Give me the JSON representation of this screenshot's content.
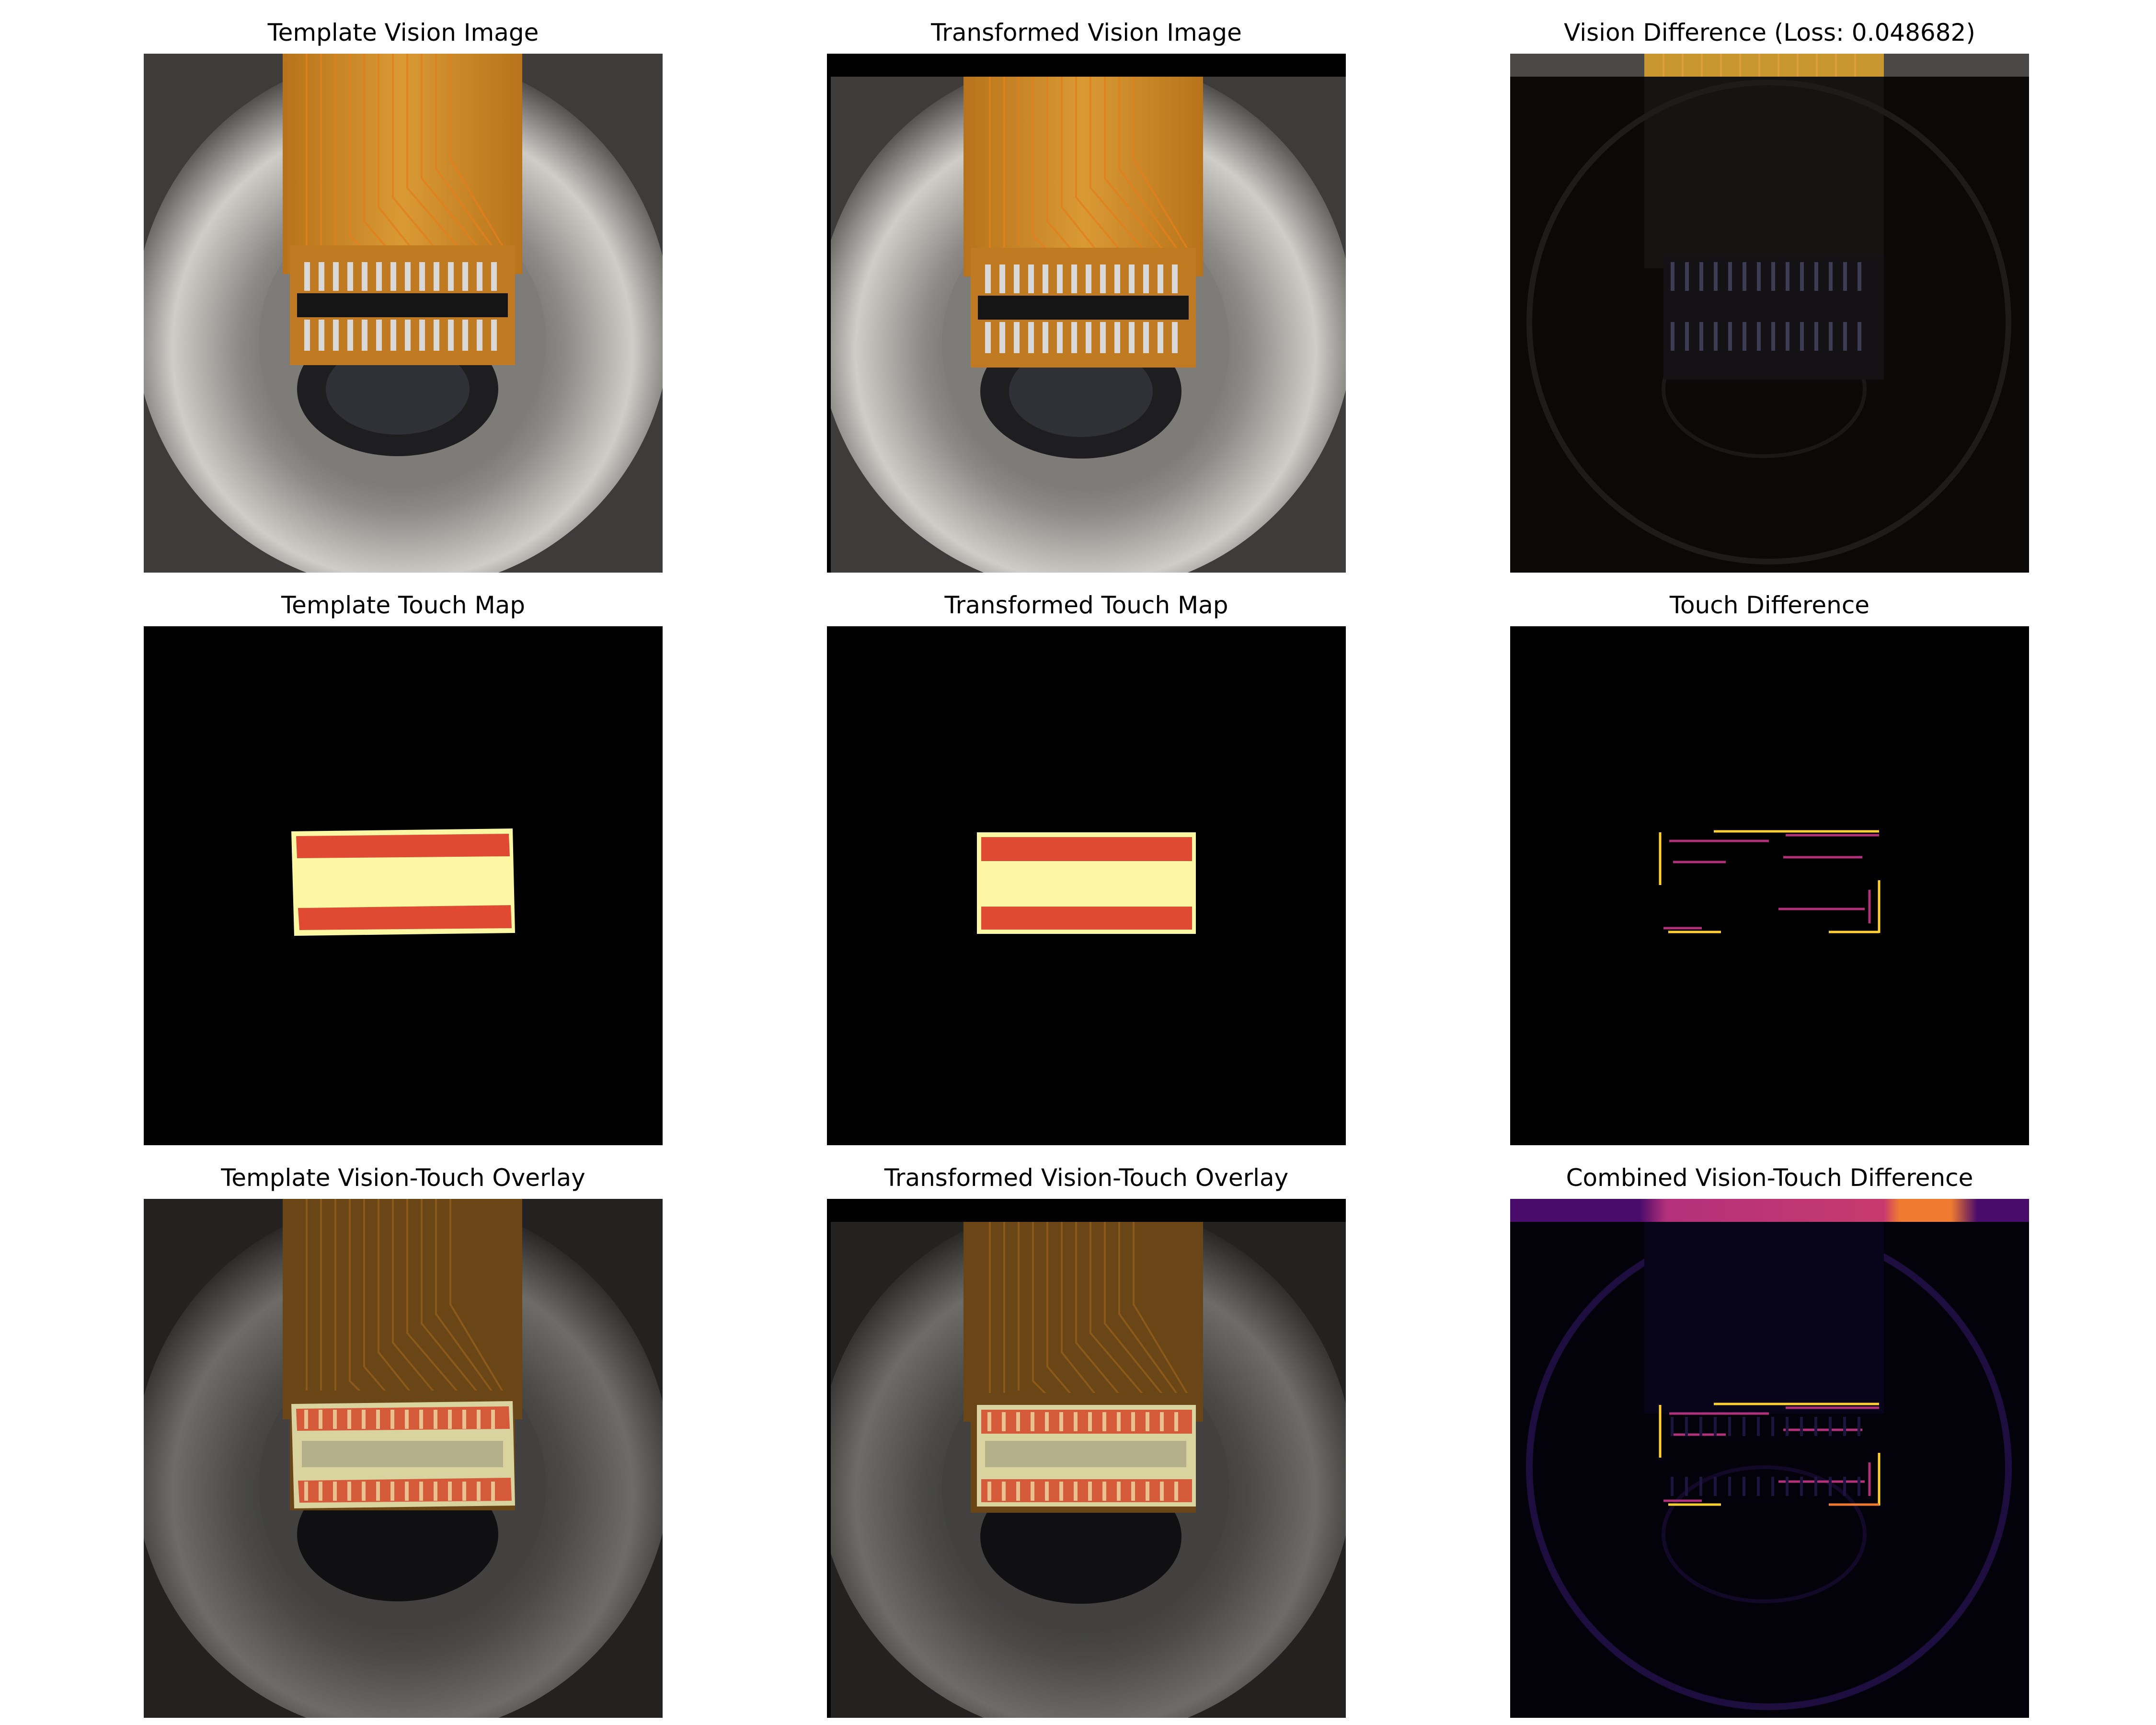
{
  "figure": {
    "panels": [
      {
        "title": "Template Vision Image",
        "kind": "vision"
      },
      {
        "title": "Transformed Vision Image",
        "kind": "vision"
      },
      {
        "title": "Vision Difference (Loss: 0.048682)",
        "kind": "difference"
      },
      {
        "title": "Template Touch Map",
        "kind": "touch-map"
      },
      {
        "title": "Transformed Touch Map",
        "kind": "touch-map"
      },
      {
        "title": "Touch Difference",
        "kind": "difference"
      },
      {
        "title": "Template Vision-Touch Overlay",
        "kind": "overlay"
      },
      {
        "title": "Transformed Vision-Touch Overlay",
        "kind": "overlay"
      },
      {
        "title": "Combined Vision-Touch Difference",
        "kind": "difference"
      }
    ],
    "loss_value": 0.048682
  },
  "colors": {
    "background": "#ffffff",
    "touch_map_background": "#000000",
    "touch_pad": "#e04a33",
    "touch_body": "#fbf7a3",
    "flex_cable": "#c9861a",
    "lens_ring": "#b9b7b0",
    "diff_highlight_yellow": "#ffd030",
    "diff_highlight_magenta": "#b3307a",
    "diff_highlight_orange": "#f07a30"
  }
}
